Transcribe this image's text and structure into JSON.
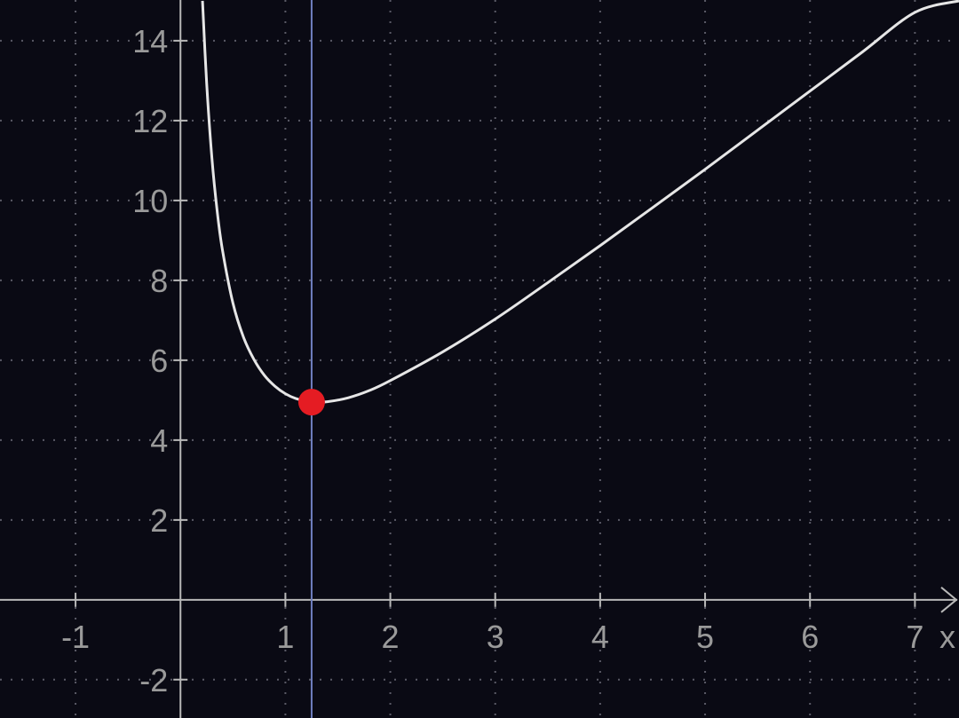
{
  "chart_data": {
    "type": "line",
    "title": "",
    "xlabel": "x",
    "ylabel": "",
    "xlim": [
      -1.72,
      7.42
    ],
    "ylim": [
      -2.96,
      15.02
    ],
    "grid": true,
    "x_ticks": [
      -1,
      1,
      2,
      3,
      4,
      5,
      6,
      7
    ],
    "x_tick_labels": [
      "-1",
      "1",
      "2",
      "3",
      "4",
      "5",
      "6",
      "7"
    ],
    "y_ticks": [
      -2,
      2,
      4,
      6,
      8,
      10,
      12,
      14
    ],
    "y_tick_labels": [
      "-2",
      "2",
      "4",
      "6",
      "8",
      "10",
      "12",
      "14"
    ],
    "series": [
      {
        "points": [
          [
            0.21,
            15.0
          ],
          [
            0.25,
            12.92
          ],
          [
            0.3,
            11.05
          ],
          [
            0.35,
            9.73
          ],
          [
            0.4,
            8.76
          ],
          [
            0.5,
            7.43
          ],
          [
            0.6,
            6.58
          ],
          [
            0.7,
            6.02
          ],
          [
            0.8,
            5.62
          ],
          [
            0.9,
            5.35
          ],
          [
            1.0,
            5.16
          ],
          [
            1.1,
            5.04
          ],
          [
            1.25,
            4.95
          ],
          [
            1.4,
            4.96
          ],
          [
            1.6,
            5.06
          ],
          [
            1.8,
            5.24
          ],
          [
            2.0,
            5.49
          ],
          [
            2.5,
            6.21
          ],
          [
            3.0,
            7.03
          ],
          [
            3.5,
            7.94
          ],
          [
            4.0,
            8.87
          ],
          [
            4.5,
            9.82
          ],
          [
            5.0,
            10.78
          ],
          [
            5.5,
            11.76
          ],
          [
            6.0,
            12.74
          ],
          [
            6.5,
            13.72
          ],
          [
            7.0,
            14.71
          ],
          [
            7.42,
            15.0
          ]
        ],
        "color": "#e6e6e6"
      }
    ],
    "vertical_marker_x": 1.25,
    "highlight_point": {
      "x": 1.25,
      "y": 4.95,
      "color": "#e51c23"
    },
    "colors": {
      "background": "#0a0a14",
      "axis": "#b8b8b8",
      "grid": "#5a5a66",
      "tick_label": "#9a9a9a",
      "marker_line": "#6f7fc0"
    }
  }
}
